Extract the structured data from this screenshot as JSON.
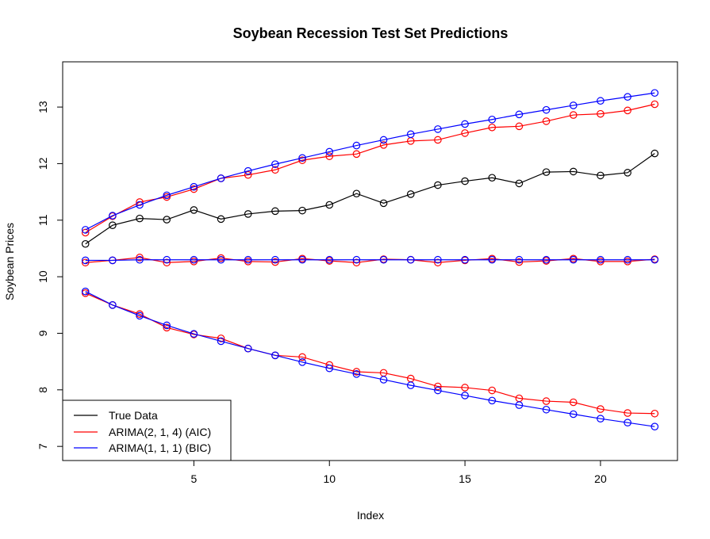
{
  "chart_data": {
    "type": "line",
    "title": "Soybean Recession Test Set Predictions",
    "xlabel": "Index",
    "ylabel": "Soybean Prices",
    "x": [
      1,
      2,
      3,
      4,
      5,
      6,
      7,
      8,
      9,
      10,
      11,
      12,
      13,
      14,
      15,
      16,
      17,
      18,
      19,
      20,
      21,
      22
    ],
    "xlim": [
      0.16,
      22.84
    ],
    "ylim": [
      6.75,
      13.8
    ],
    "x_ticks": [
      "5",
      "10",
      "15",
      "20"
    ],
    "y_ticks": [
      "7",
      "8",
      "9",
      "10",
      "11",
      "12",
      "13"
    ],
    "grid": false,
    "legend_position": "bottom-left",
    "series": [
      {
        "name": "True Data",
        "color": "#000000",
        "markers": "open-circle",
        "values": [
          10.58,
          10.91,
          11.03,
          11.01,
          11.18,
          11.02,
          11.11,
          11.16,
          11.17,
          11.27,
          11.47,
          11.3,
          11.46,
          11.62,
          11.69,
          11.75,
          11.65,
          11.85,
          11.86,
          11.79,
          11.84,
          12.18
        ]
      },
      {
        "name": "ARIMA(2, 1, 4) (AIC)",
        "color": "#ff0000",
        "markers": "open-circle",
        "values": [
          10.78,
          11.07,
          11.32,
          11.41,
          11.55,
          11.74,
          11.8,
          11.89,
          12.06,
          12.13,
          12.17,
          12.33,
          12.4,
          12.42,
          12.54,
          12.64,
          12.66,
          12.75,
          12.86,
          12.88,
          12.94,
          13.05
        ]
      },
      {
        "name": "",
        "color": "#ff0000",
        "markers": "open-circle",
        "values": [
          10.25,
          10.29,
          10.34,
          10.25,
          10.27,
          10.33,
          10.27,
          10.26,
          10.32,
          10.28,
          10.25,
          10.31,
          10.3,
          10.25,
          10.29,
          10.32,
          10.26,
          10.28,
          10.32,
          10.27,
          10.27,
          10.31
        ]
      },
      {
        "name": "",
        "color": "#ff0000",
        "markers": "open-circle",
        "values": [
          9.71,
          9.5,
          9.34,
          9.1,
          8.98,
          8.91,
          8.73,
          8.61,
          8.58,
          8.44,
          8.32,
          8.3,
          8.2,
          8.06,
          8.04,
          7.99,
          7.85,
          7.8,
          7.78,
          7.66,
          7.59,
          7.58
        ]
      },
      {
        "name": "ARIMA(1, 1, 1) (BIC)",
        "color": "#0000ff",
        "markers": "open-circle",
        "values": [
          10.83,
          11.08,
          11.27,
          11.44,
          11.59,
          11.74,
          11.87,
          11.99,
          12.1,
          12.21,
          12.32,
          12.42,
          12.52,
          12.61,
          12.7,
          12.78,
          12.87,
          12.95,
          13.03,
          13.11,
          13.18,
          13.25
        ]
      },
      {
        "name": "",
        "color": "#0000ff",
        "markers": "open-circle",
        "values": [
          10.29,
          10.29,
          10.3,
          10.3,
          10.3,
          10.3,
          10.3,
          10.3,
          10.3,
          10.3,
          10.3,
          10.3,
          10.3,
          10.3,
          10.3,
          10.3,
          10.3,
          10.3,
          10.3,
          10.3,
          10.3,
          10.3
        ]
      },
      {
        "name": "",
        "color": "#0000ff",
        "markers": "open-circle",
        "values": [
          9.74,
          9.5,
          9.31,
          9.14,
          8.99,
          8.86,
          8.73,
          8.61,
          8.49,
          8.38,
          8.28,
          8.18,
          8.08,
          7.99,
          7.9,
          7.81,
          7.73,
          7.65,
          7.57,
          7.49,
          7.42,
          7.35
        ]
      }
    ],
    "legend": [
      {
        "label": "True Data",
        "color": "#000000"
      },
      {
        "label": "ARIMA(2, 1, 4) (AIC)",
        "color": "#ff0000"
      },
      {
        "label": "ARIMA(1, 1, 1) (BIC)",
        "color": "#0000ff"
      }
    ]
  }
}
